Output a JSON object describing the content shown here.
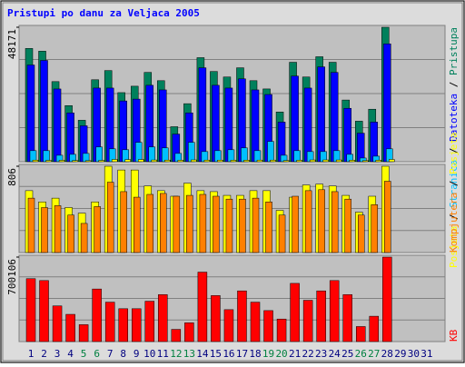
{
  "chart_data": [
    {
      "type": "bar",
      "title": "Pristupi po danu za Veljaca 2005",
      "ylim": [
        0,
        48171
      ],
      "yticks": [
        48171
      ],
      "legend_separator": " / ",
      "series": [
        {
          "name": "Pristupa",
          "color": "#00805c",
          "values": [
            40580,
            39600,
            28700,
            20100,
            14850,
            29360,
            32660,
            24750,
            27050,
            32000,
            29030,
            12540,
            20790,
            37280,
            32330,
            30350,
            33650,
            29030,
            26070,
            17820,
            35630,
            30350,
            37610,
            35630,
            22100,
            14520,
            18810,
            48171,
            null,
            null,
            null
          ]
        },
        {
          "name": "Datoteka",
          "color": "#0000ff",
          "values": [
            34650,
            36290,
            26060,
            17490,
            12870,
            26390,
            26390,
            21770,
            22430,
            27380,
            25730,
            9900,
            17490,
            33650,
            27380,
            26390,
            29690,
            25730,
            24080,
            14190,
            30680,
            26390,
            33980,
            32000,
            19130,
            10230,
            14190,
            42230,
            null,
            null,
            null
          ]
        },
        {
          "name": "Stranica",
          "color": "#00c0ff",
          "values": [
            3960,
            3960,
            2310,
            2640,
            2970,
            5280,
            4620,
            4290,
            6930,
            5280,
            4950,
            2970,
            6930,
            3630,
            3960,
            4290,
            4950,
            3960,
            7260,
            2310,
            3960,
            3630,
            3630,
            3960,
            2640,
            1320,
            1980,
            4620,
            null,
            null,
            null
          ]
        },
        {
          "name": "Posjeta",
          "color": "#ffff00",
          "values": [
            578,
            473,
            508,
            420,
            368,
            473,
            806,
            771,
            771,
            622,
            578,
            526,
            648,
            578,
            569,
            534,
            534,
            578,
            578,
            394,
            517,
            631,
            639,
            622,
            534,
            377,
            526,
            806,
            null,
            null,
            null
          ]
        }
      ]
    },
    {
      "type": "bar",
      "ylim": [
        0,
        806
      ],
      "yticks": [
        806
      ],
      "legend_separator": " / ",
      "series": [
        {
          "name": "Posjeta",
          "color": "#ffff00",
          "values": [
            578,
            473,
            508,
            420,
            368,
            473,
            806,
            771,
            771,
            622,
            578,
            526,
            648,
            578,
            569,
            534,
            534,
            578,
            578,
            394,
            517,
            631,
            639,
            622,
            534,
            377,
            526,
            806,
            null,
            null,
            null
          ]
        },
        {
          "name": "Kompjutera",
          "color": "#ff8000",
          "values": [
            508,
            420,
            438,
            350,
            272,
            429,
            657,
            569,
            517,
            543,
            552,
            526,
            534,
            543,
            526,
            499,
            499,
            508,
            473,
            350,
            526,
            578,
            587,
            569,
            499,
            350,
            447,
            666,
            null,
            null,
            null
          ]
        }
      ]
    },
    {
      "type": "bar",
      "ylim": [
        0,
        700106
      ],
      "yticks": [
        700106
      ],
      "legend_separator": " / ",
      "series": [
        {
          "name": "KB",
          "color": "#ff0000",
          "values": [
            521200,
            505600,
            295600,
            225600,
            140000,
            435600,
            326700,
            272300,
            272300,
            334500,
            389000,
            101100,
            155600,
            575600,
            381200,
            264500,
            420100,
            326700,
            256700,
            186700,
            482300,
            342300,
            420100,
            505600,
            389000,
            124500,
            210000,
            700106,
            null,
            null,
            null
          ]
        }
      ],
      "categories": [
        "1",
        "2",
        "3",
        "4",
        "5",
        "6",
        "7",
        "8",
        "9",
        "10",
        "11",
        "12",
        "13",
        "14",
        "15",
        "16",
        "17",
        "18",
        "19",
        "20",
        "21",
        "22",
        "23",
        "24",
        "25",
        "26",
        "27",
        "28",
        "29",
        "30",
        "31"
      ],
      "label_colors": [
        "#000080",
        "#000080",
        "#000080",
        "#000080",
        "#008040",
        "#008040",
        "#000080",
        "#000080",
        "#000080",
        "#000080",
        "#000080",
        "#008040",
        "#008040",
        "#000080",
        "#000080",
        "#000080",
        "#000080",
        "#000080",
        "#008040",
        "#008040",
        "#000080",
        "#000080",
        "#000080",
        "#000080",
        "#000080",
        "#008040",
        "#008040",
        "#000080",
        "#000080",
        "#000080",
        "#000080"
      ]
    }
  ]
}
